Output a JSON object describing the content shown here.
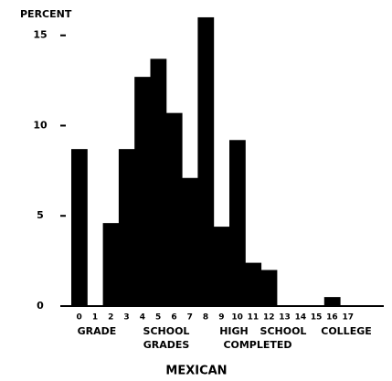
{
  "chart_data": {
    "type": "bar",
    "title": "MEXICAN",
    "y_label": "PERCENT",
    "categories": [
      "0",
      "1",
      "2",
      "3",
      "4",
      "5",
      "6",
      "7",
      "8",
      "9",
      "10",
      "11",
      "12",
      "13",
      "14",
      "15",
      "16",
      "17"
    ],
    "values": [
      8.7,
      0,
      4.6,
      8.7,
      12.7,
      13.7,
      10.7,
      7.1,
      16.0,
      4.4,
      9.2,
      2.4,
      2.0,
      0,
      0,
      0,
      0.5,
      0
    ],
    "color": "#000000",
    "ylim": [
      0,
      16.2
    ],
    "yticks": [
      0,
      5,
      10,
      15
    ],
    "annotations": [
      "GRADE",
      "SCHOOL",
      "GRADES",
      "HIGH",
      "SCHOOL",
      "COMPLETED",
      "COLLEGE"
    ]
  }
}
